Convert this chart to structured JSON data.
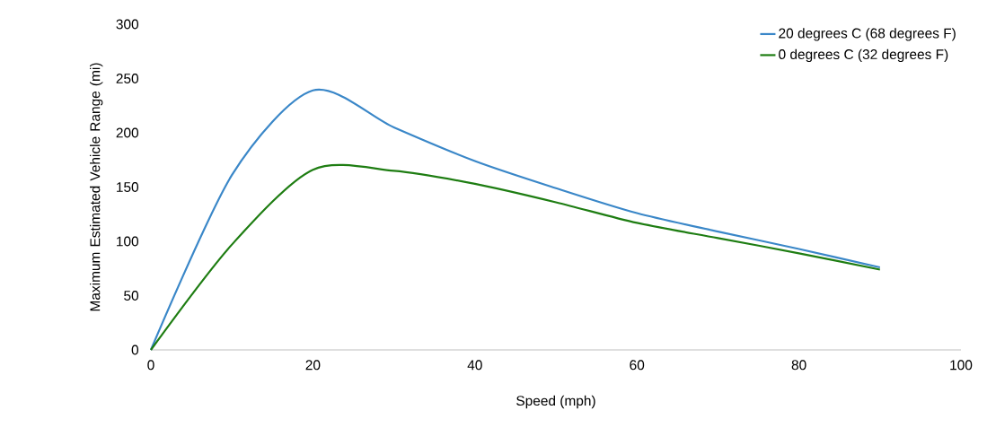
{
  "chart_data": {
    "type": "line",
    "xlabel": "Speed (mph)",
    "ylabel": "Maximum Estimated Vehicle Range (mi)",
    "x": [
      0,
      10,
      20,
      30,
      40,
      50,
      60,
      70,
      80,
      90
    ],
    "series": [
      {
        "name": "20 degrees C (68 degrees F)",
        "color": "#3a87c8",
        "values": [
          0,
          161,
          239,
          205,
          174,
          149,
          126,
          109,
          93,
          76
        ]
      },
      {
        "name": "0 degrees C (32 degrees F)",
        "color": "#1e7d12",
        "values": [
          0,
          97,
          166,
          165,
          153,
          136,
          117,
          103,
          89,
          74
        ]
      }
    ],
    "xlim": [
      0,
      100
    ],
    "ylim": [
      0,
      300
    ],
    "xticks": [
      0,
      20,
      40,
      60,
      80,
      100
    ],
    "yticks": [
      0,
      50,
      100,
      150,
      200,
      250,
      300
    ],
    "legend": "top right",
    "grid": false,
    "marker": "none"
  }
}
